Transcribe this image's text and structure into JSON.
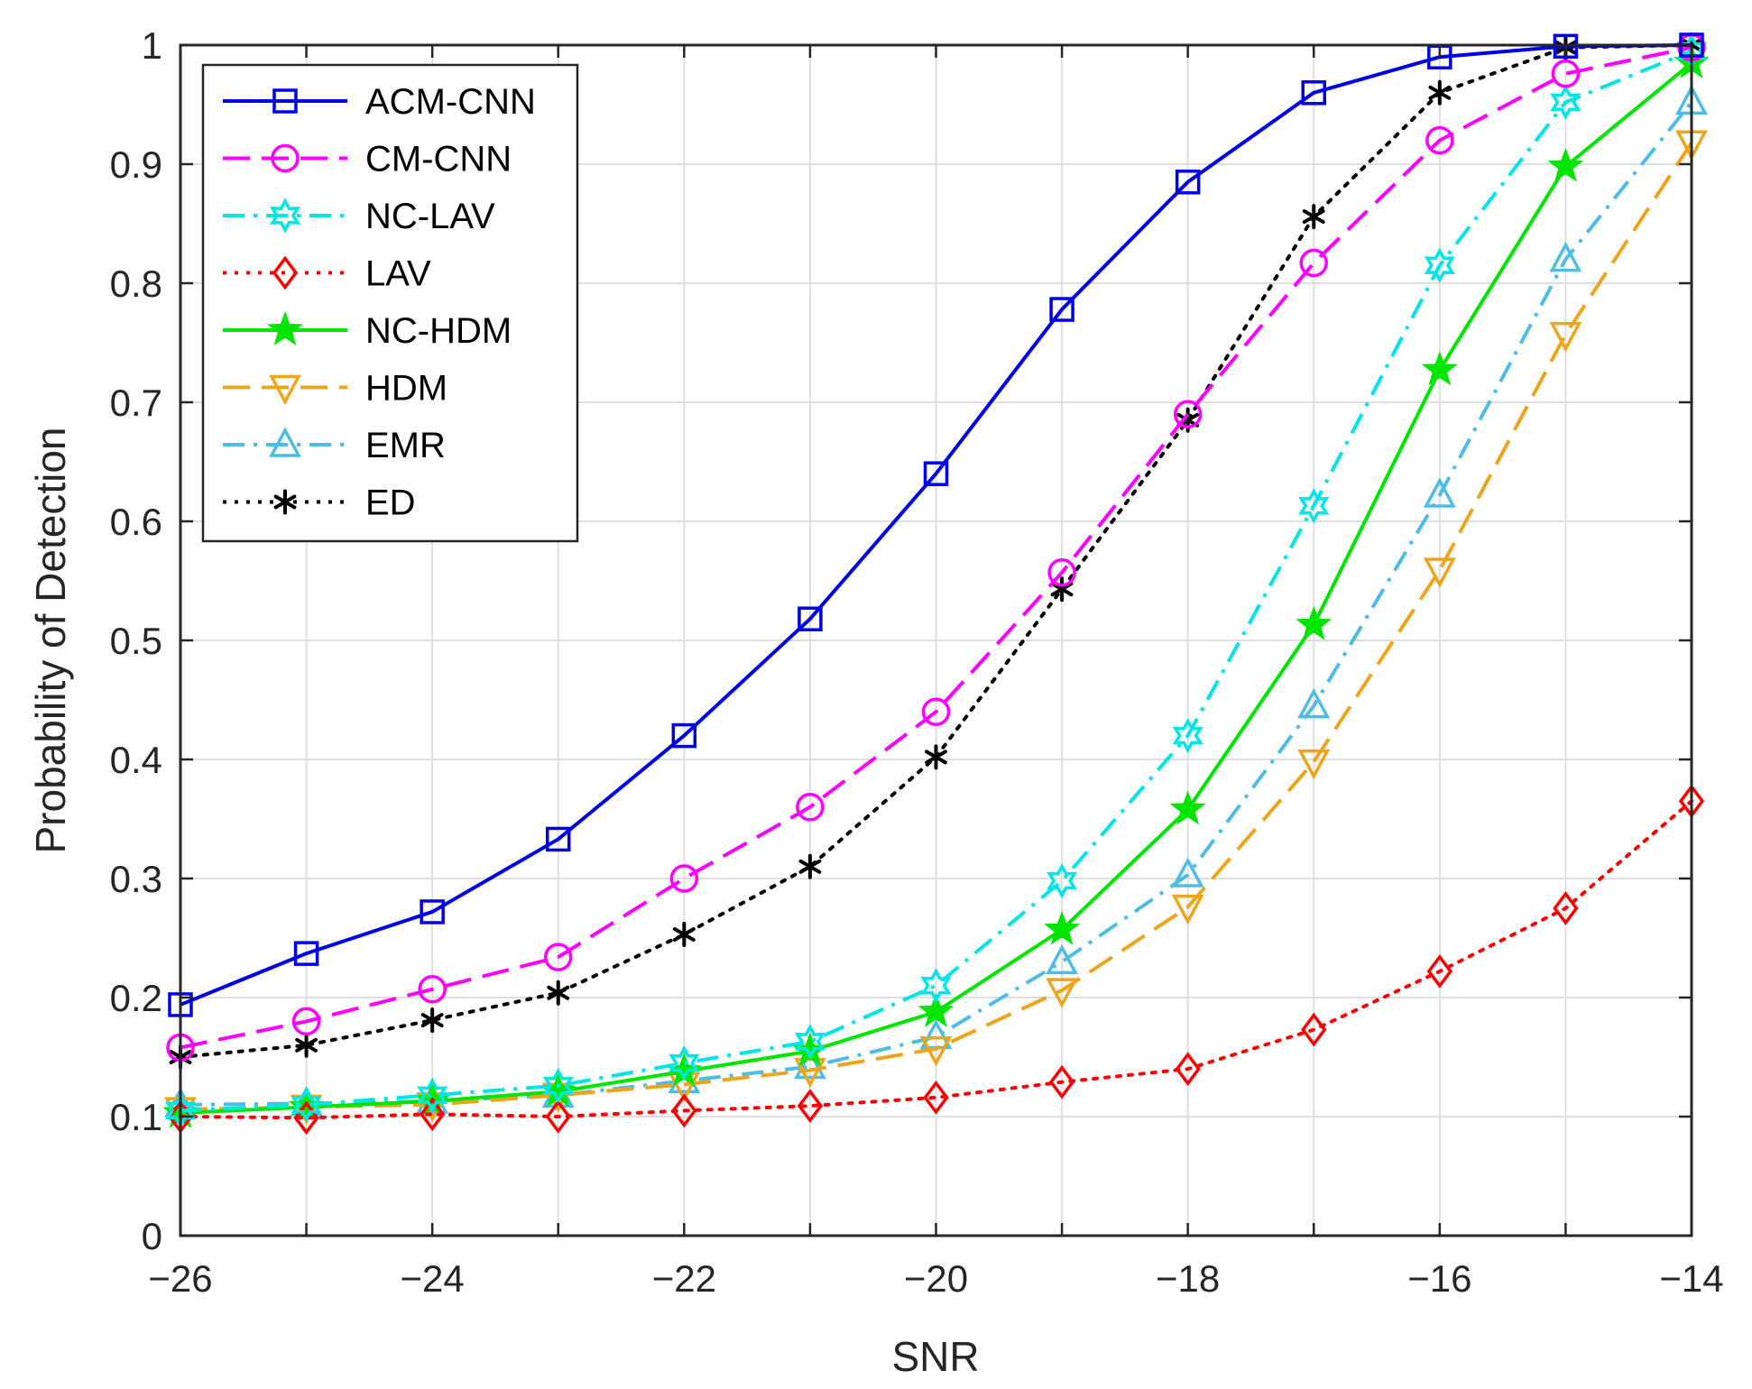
{
  "chart_data": {
    "type": "line",
    "title": "",
    "xlabel": "SNR",
    "ylabel": "Probability of Detection",
    "xlim": [
      -26,
      -14
    ],
    "ylim": [
      0,
      1
    ],
    "grid": true,
    "legend_position": "top-left",
    "x": [
      -26,
      -25,
      -24,
      -23,
      -22,
      -21,
      -20,
      -19,
      -18,
      -17,
      -16,
      -15,
      -14
    ],
    "x_ticks": [
      -26,
      -24,
      -22,
      -20,
      -18,
      -16,
      -14
    ],
    "x_tick_labels": [
      "−26",
      "−24",
      "−22",
      "−20",
      "−18",
      "−16",
      "−14"
    ],
    "y_ticks": [
      0,
      0.1,
      0.2,
      0.3,
      0.4,
      0.5,
      0.6,
      0.7,
      0.8,
      0.9,
      1
    ],
    "y_tick_labels": [
      "0",
      "0.1",
      "0.2",
      "0.3",
      "0.4",
      "0.5",
      "0.6",
      "0.7",
      "0.8",
      "0.9",
      "1"
    ],
    "series": [
      {
        "name": "ACM-CNN",
        "color": "#0000e6",
        "line_style": "solid",
        "marker": "square",
        "values": [
          0.194,
          0.237,
          0.272,
          0.333,
          0.42,
          0.518,
          0.64,
          0.778,
          0.885,
          0.96,
          0.99,
          0.999,
          1.0
        ]
      },
      {
        "name": "CM-CNN",
        "color": "#ff00ff",
        "line_style": "dashed",
        "marker": "circle",
        "values": [
          0.158,
          0.18,
          0.207,
          0.234,
          0.3,
          0.36,
          0.44,
          0.557,
          0.69,
          0.817,
          0.92,
          0.976,
          0.998
        ]
      },
      {
        "name": "NC-LAV",
        "color": "#00e6e6",
        "line_style": "dashdot",
        "marker": "hexagram",
        "values": [
          0.105,
          0.11,
          0.118,
          0.126,
          0.145,
          0.163,
          0.21,
          0.298,
          0.42,
          0.613,
          0.815,
          0.952,
          0.995
        ]
      },
      {
        "name": "LAV",
        "color": "#ff0000",
        "line_style": "dotted",
        "marker": "diamond",
        "values": [
          0.1,
          0.099,
          0.102,
          0.1,
          0.105,
          0.109,
          0.116,
          0.129,
          0.14,
          0.173,
          0.222,
          0.275,
          0.365
        ]
      },
      {
        "name": "NC-HDM",
        "color": "#00e600",
        "line_style": "solid",
        "marker": "pentagram",
        "values": [
          0.103,
          0.108,
          0.113,
          0.121,
          0.138,
          0.155,
          0.188,
          0.257,
          0.358,
          0.513,
          0.727,
          0.898,
          0.985
        ]
      },
      {
        "name": "HDM",
        "color": "#eda51c",
        "line_style": "dashed",
        "marker": "triangle-down",
        "values": [
          0.106,
          0.108,
          0.11,
          0.118,
          0.127,
          0.139,
          0.157,
          0.206,
          0.276,
          0.398,
          0.559,
          0.757,
          0.918
        ]
      },
      {
        "name": "EMR",
        "color": "#4dbde6",
        "line_style": "dashdot",
        "marker": "triangle-up",
        "values": [
          0.11,
          0.111,
          0.113,
          0.118,
          0.13,
          0.142,
          0.167,
          0.23,
          0.303,
          0.445,
          0.622,
          0.82,
          0.952
        ]
      },
      {
        "name": "ED",
        "color": "#000000",
        "line_style": "dotted",
        "marker": "asterisk",
        "values": [
          0.15,
          0.16,
          0.181,
          0.204,
          0.253,
          0.31,
          0.402,
          0.543,
          0.685,
          0.856,
          0.96,
          0.998,
          1.0
        ]
      }
    ]
  }
}
